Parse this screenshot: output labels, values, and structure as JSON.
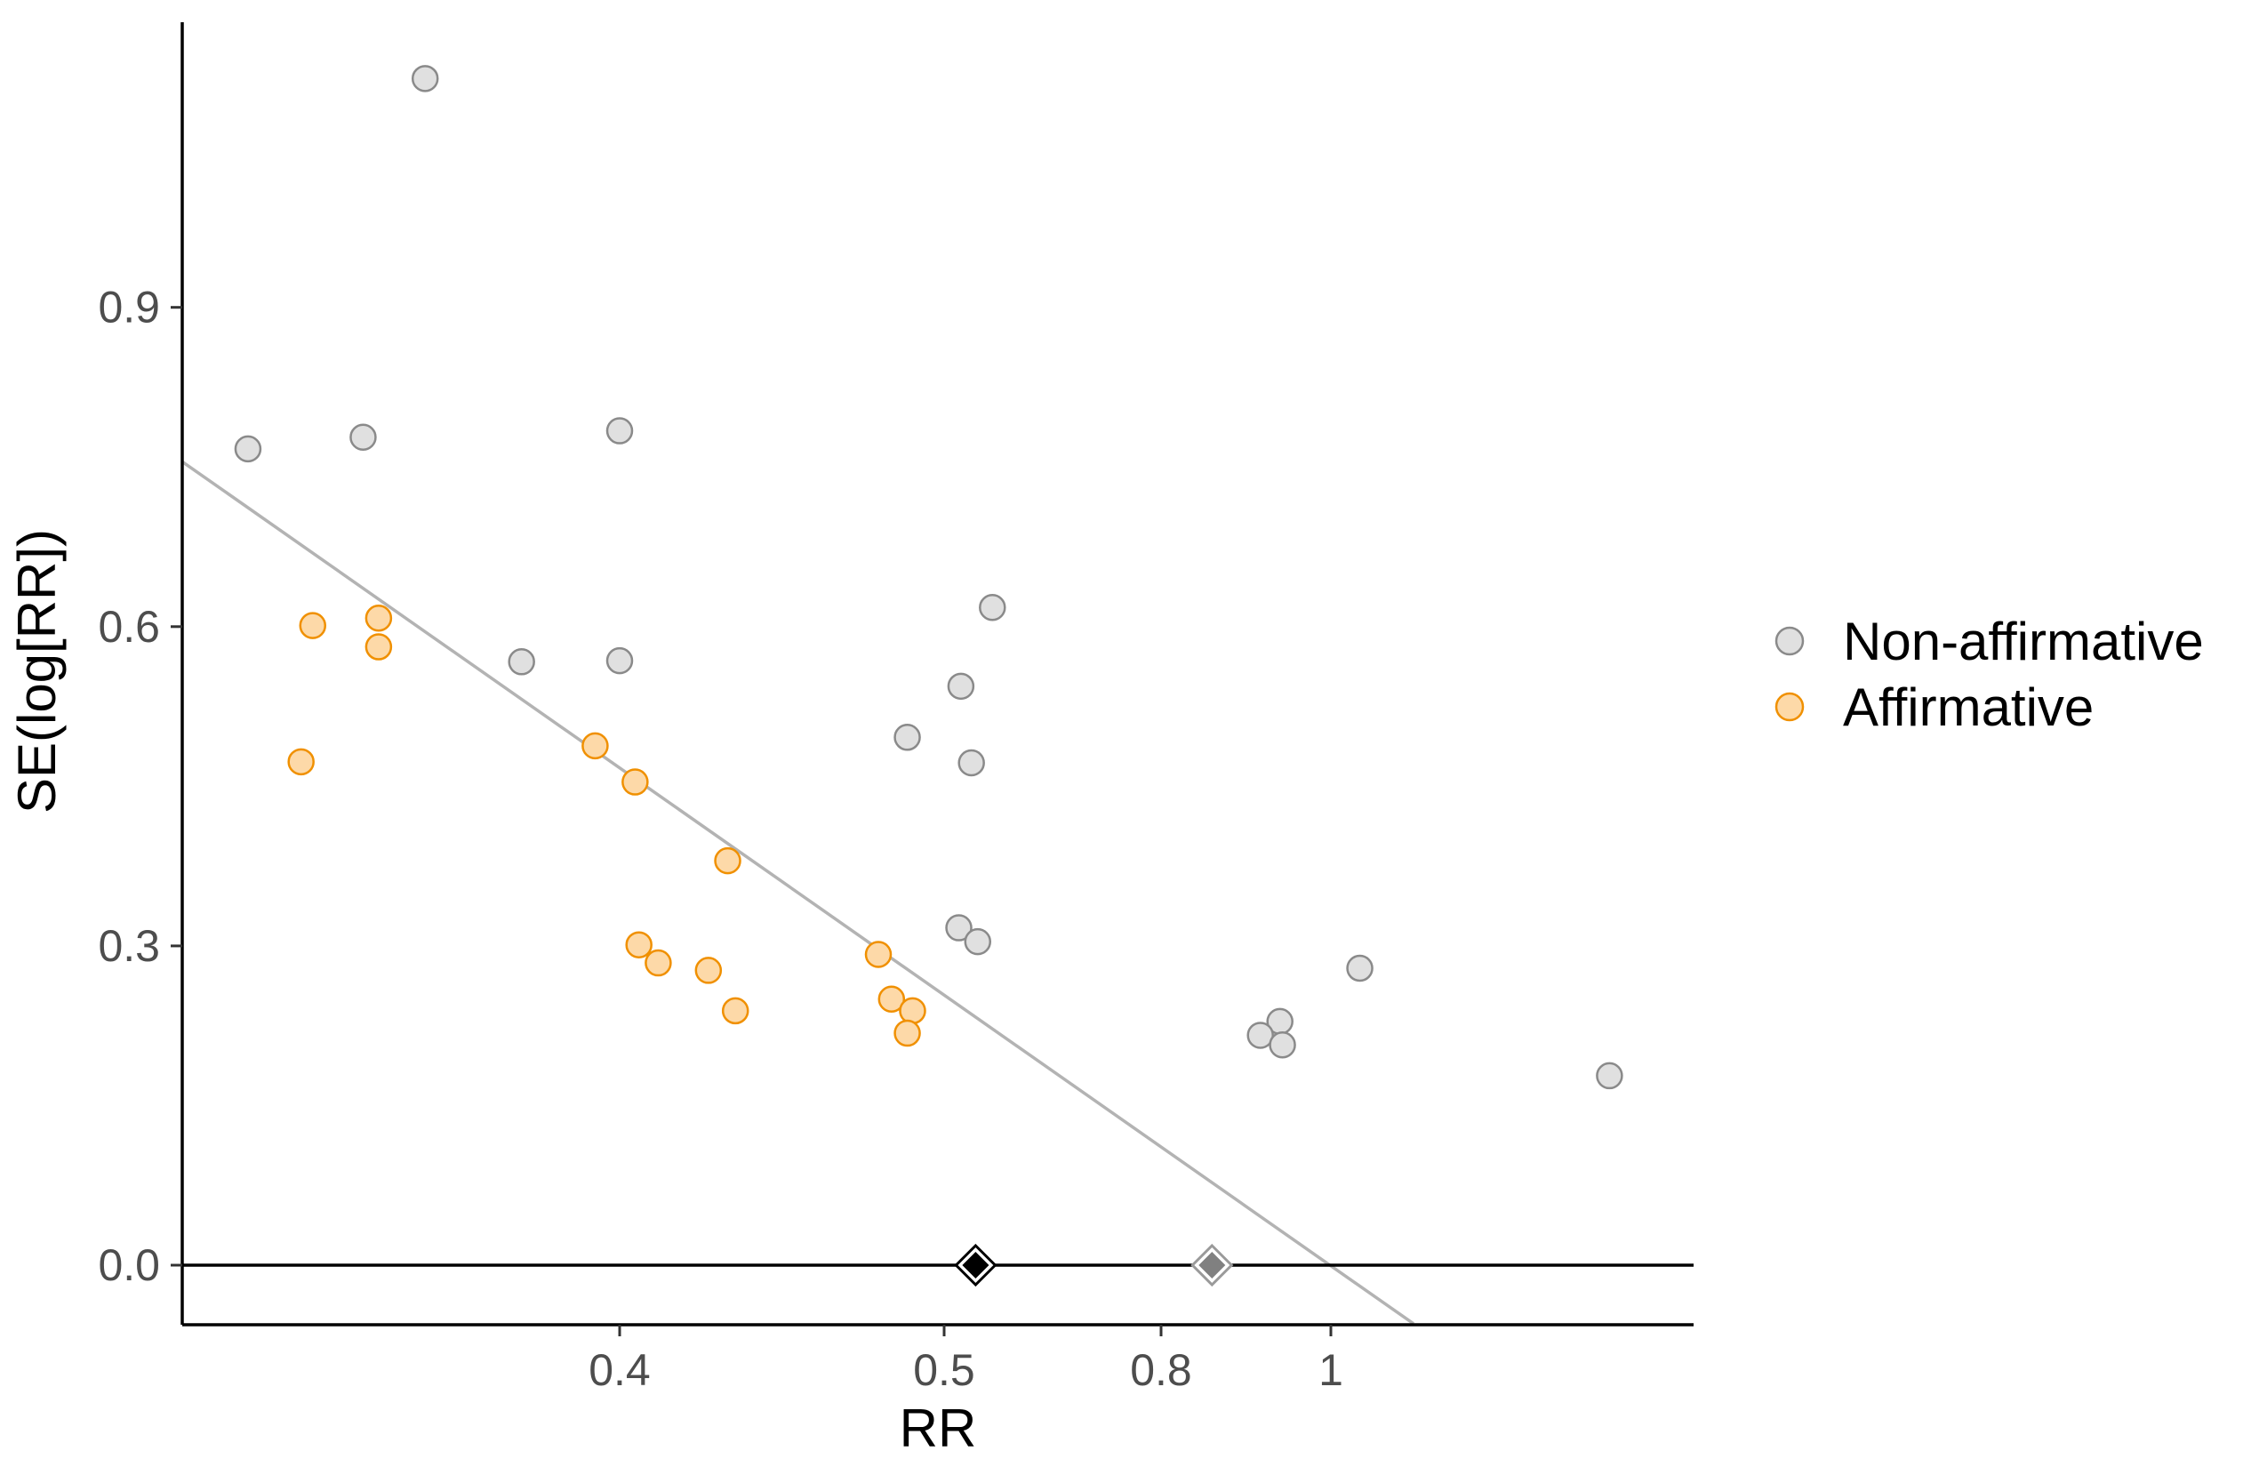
{
  "chart_data": {
    "type": "scatter",
    "title": "",
    "xlabel": "RR",
    "ylabel": "SE(log[RR])",
    "x_axis_scale": "nonlinear",
    "x_ticks": [
      {
        "value": 0.4,
        "label": "0.4"
      },
      {
        "value": 0.5,
        "label": "0.5"
      },
      {
        "value": 0.8,
        "label": "0.8"
      },
      {
        "value": 1,
        "label": "1"
      }
    ],
    "y_ticks": [
      {
        "value": 0.0,
        "label": "0.0"
      },
      {
        "value": 0.3,
        "label": "0.3"
      },
      {
        "value": 0.6,
        "label": "0.6"
      },
      {
        "value": 0.9,
        "label": "0.9"
      }
    ],
    "ylim": [
      -0.055,
      1.17
    ],
    "grid": false,
    "legend_position": "right",
    "series": [
      {
        "name": "Non-affirmative",
        "fill": "#e0e0e0",
        "stroke": "#8a8a8a",
        "points": [
          {
            "x": 0.345,
            "y": 1.115
          },
          {
            "x": 0.298,
            "y": 0.767
          },
          {
            "x": 0.329,
            "y": 0.778
          },
          {
            "x": 0.4,
            "y": 0.784
          },
          {
            "x": 0.372,
            "y": 0.567
          },
          {
            "x": 0.4,
            "y": 0.568
          },
          {
            "x": 0.523,
            "y": 0.618
          },
          {
            "x": 0.508,
            "y": 0.544
          },
          {
            "x": 0.486,
            "y": 0.496
          },
          {
            "x": 0.513,
            "y": 0.472
          },
          {
            "x": 0.507,
            "y": 0.317
          },
          {
            "x": 0.516,
            "y": 0.304
          },
          {
            "x": 0.94,
            "y": 0.229
          },
          {
            "x": 0.917,
            "y": 0.216
          },
          {
            "x": 0.943,
            "y": 0.207
          },
          {
            "x": 1.035,
            "y": 0.279
          },
          {
            "x": 1.33,
            "y": 0.178
          }
        ]
      },
      {
        "name": "Affirmative",
        "fill": "#fdd9a8",
        "stroke": "#f09000",
        "points": [
          {
            "x": 0.316,
            "y": 0.601
          },
          {
            "x": 0.333,
            "y": 0.608
          },
          {
            "x": 0.333,
            "y": 0.581
          },
          {
            "x": 0.313,
            "y": 0.473
          },
          {
            "x": 0.393,
            "y": 0.488
          },
          {
            "x": 0.404,
            "y": 0.454
          },
          {
            "x": 0.428,
            "y": 0.38
          },
          {
            "x": 0.405,
            "y": 0.301
          },
          {
            "x": 0.41,
            "y": 0.284
          },
          {
            "x": 0.423,
            "y": 0.277
          },
          {
            "x": 0.43,
            "y": 0.239
          },
          {
            "x": 0.475,
            "y": 0.292
          },
          {
            "x": 0.48,
            "y": 0.25
          },
          {
            "x": 0.488,
            "y": 0.239
          },
          {
            "x": 0.486,
            "y": 0.218
          }
        ]
      }
    ],
    "reference_line": {
      "x1": 0.25,
      "y1": 0.755,
      "x2": 1.1,
      "y2": -0.055,
      "color": "#b3b3b3"
    },
    "zero_line_y": 0.0,
    "pooled_estimates": [
      {
        "x": 0.515,
        "y": 0.0,
        "fill": "#000000",
        "stroke": "#000000"
      },
      {
        "x": 0.86,
        "y": 0.0,
        "fill": "#808080",
        "stroke": "#9a9a9a"
      }
    ]
  }
}
